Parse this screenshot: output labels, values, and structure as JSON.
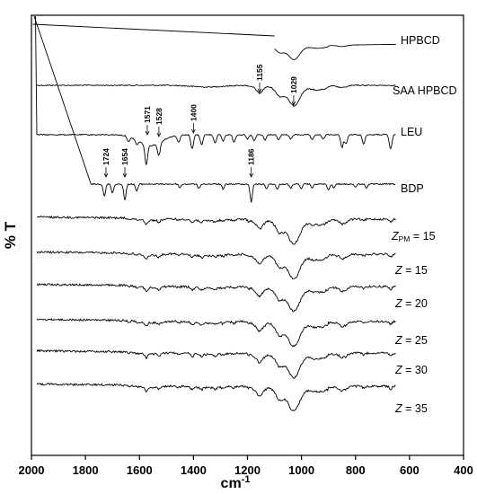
{
  "chart_data": {
    "type": "line",
    "xlabel": "cm",
    "xlabel_sup": "-1",
    "ylabel": "% T",
    "xlim": [
      2000,
      400
    ],
    "x_reversed": true,
    "x_ticks": [
      2000,
      1800,
      1600,
      1400,
      1200,
      1000,
      800,
      600,
      400
    ],
    "y_ticks_shown": false,
    "legend": "labels at right end of each trace",
    "series": [
      {
        "name": "HPBCD",
        "label_parts": [
          "HPBCD"
        ],
        "label_italic": [
          false
        ]
      },
      {
        "name": "SAA HPBCD",
        "label_parts": [
          "SAA HPBCD"
        ],
        "label_italic": [
          false
        ]
      },
      {
        "name": "LEU",
        "label_parts": [
          "LEU"
        ],
        "label_italic": [
          false
        ]
      },
      {
        "name": "BDP",
        "label_parts": [
          "BDP"
        ],
        "label_italic": [
          false
        ]
      },
      {
        "name": "ZPM = 15",
        "label_parts": [
          "Z",
          "PM",
          " = 15"
        ],
        "label_italic": [
          true,
          false,
          false
        ]
      },
      {
        "name": "Z = 15",
        "label_parts": [
          "Z",
          " = 15"
        ],
        "label_italic": [
          true,
          false
        ]
      },
      {
        "name": "Z = 20",
        "label_parts": [
          "Z",
          " = 20"
        ],
        "label_italic": [
          true,
          false
        ]
      },
      {
        "name": "Z = 25",
        "label_parts": [
          "Z",
          " = 25"
        ],
        "label_italic": [
          true,
          false
        ]
      },
      {
        "name": "Z = 30",
        "label_parts": [
          "Z",
          " = 30"
        ],
        "label_italic": [
          true,
          false
        ]
      },
      {
        "name": "Z = 35",
        "label_parts": [
          "Z",
          " = 35"
        ],
        "label_italic": [
          true,
          false
        ]
      }
    ],
    "annotations": [
      {
        "text": "1155",
        "x": 1155,
        "series": "SAA HPBCD"
      },
      {
        "text": "1029",
        "x": 1029,
        "series": "SAA HPBCD"
      },
      {
        "text": "1571",
        "x": 1571,
        "series": "LEU"
      },
      {
        "text": "1528",
        "x": 1528,
        "series": "LEU"
      },
      {
        "text": "1400",
        "x": 1400,
        "series": "LEU"
      },
      {
        "text": "1724",
        "x": 1724,
        "series": "BDP"
      },
      {
        "text": "1654",
        "x": 1654,
        "series": "BDP"
      },
      {
        "text": "1186",
        "x": 1186,
        "series": "BDP"
      }
    ]
  }
}
